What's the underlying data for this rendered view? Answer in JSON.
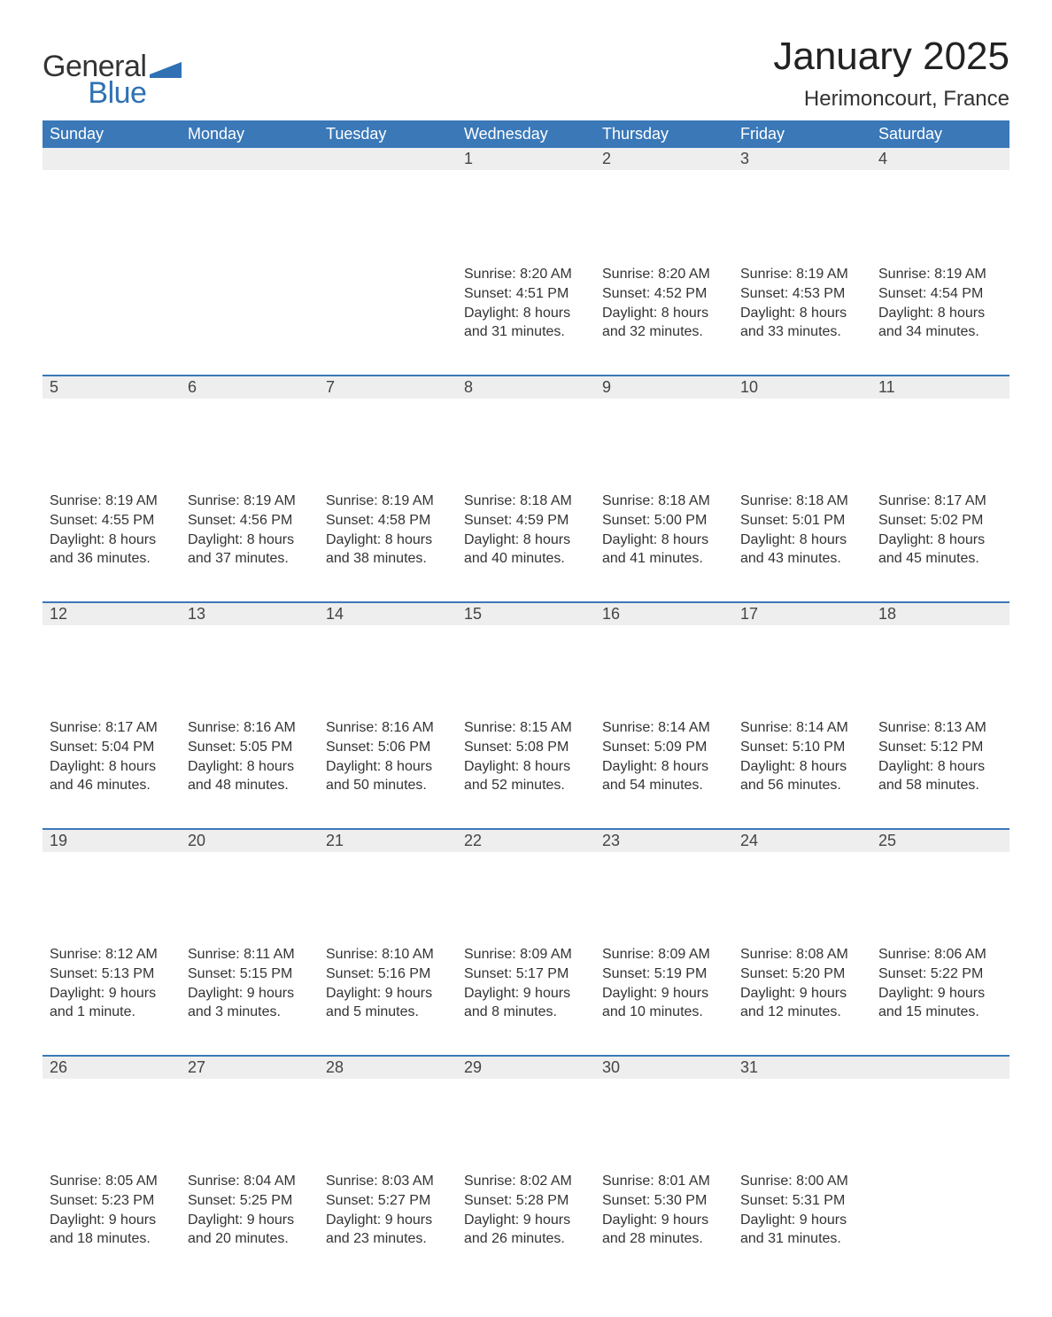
{
  "logo": {
    "word1": "General",
    "word2": "Blue"
  },
  "title": "January 2025",
  "subtitle": "Herimoncourt, France",
  "styling": {
    "header_bg": "#3a78b8",
    "header_fg": "#ffffff",
    "daynum_bg": "#eeeeee",
    "daynum_border_top": "#3a78b8",
    "page_bg": "#ffffff",
    "text_color": "#333333",
    "title_fontsize_pt": 33,
    "subtitle_fontsize_pt": 18,
    "body_fontsize_pt": 12,
    "header_fontsize_pt": 13,
    "font_family": "Arial"
  },
  "calendar": {
    "type": "table",
    "columns": [
      "Sunday",
      "Monday",
      "Tuesday",
      "Wednesday",
      "Thursday",
      "Friday",
      "Saturday"
    ],
    "start_day_index": 3,
    "days": [
      {
        "n": 1,
        "sunrise": "8:20 AM",
        "sunset": "4:51 PM",
        "daylight": "8 hours and 31 minutes."
      },
      {
        "n": 2,
        "sunrise": "8:20 AM",
        "sunset": "4:52 PM",
        "daylight": "8 hours and 32 minutes."
      },
      {
        "n": 3,
        "sunrise": "8:19 AM",
        "sunset": "4:53 PM",
        "daylight": "8 hours and 33 minutes."
      },
      {
        "n": 4,
        "sunrise": "8:19 AM",
        "sunset": "4:54 PM",
        "daylight": "8 hours and 34 minutes."
      },
      {
        "n": 5,
        "sunrise": "8:19 AM",
        "sunset": "4:55 PM",
        "daylight": "8 hours and 36 minutes."
      },
      {
        "n": 6,
        "sunrise": "8:19 AM",
        "sunset": "4:56 PM",
        "daylight": "8 hours and 37 minutes."
      },
      {
        "n": 7,
        "sunrise": "8:19 AM",
        "sunset": "4:58 PM",
        "daylight": "8 hours and 38 minutes."
      },
      {
        "n": 8,
        "sunrise": "8:18 AM",
        "sunset": "4:59 PM",
        "daylight": "8 hours and 40 minutes."
      },
      {
        "n": 9,
        "sunrise": "8:18 AM",
        "sunset": "5:00 PM",
        "daylight": "8 hours and 41 minutes."
      },
      {
        "n": 10,
        "sunrise": "8:18 AM",
        "sunset": "5:01 PM",
        "daylight": "8 hours and 43 minutes."
      },
      {
        "n": 11,
        "sunrise": "8:17 AM",
        "sunset": "5:02 PM",
        "daylight": "8 hours and 45 minutes."
      },
      {
        "n": 12,
        "sunrise": "8:17 AM",
        "sunset": "5:04 PM",
        "daylight": "8 hours and 46 minutes."
      },
      {
        "n": 13,
        "sunrise": "8:16 AM",
        "sunset": "5:05 PM",
        "daylight": "8 hours and 48 minutes."
      },
      {
        "n": 14,
        "sunrise": "8:16 AM",
        "sunset": "5:06 PM",
        "daylight": "8 hours and 50 minutes."
      },
      {
        "n": 15,
        "sunrise": "8:15 AM",
        "sunset": "5:08 PM",
        "daylight": "8 hours and 52 minutes."
      },
      {
        "n": 16,
        "sunrise": "8:14 AM",
        "sunset": "5:09 PM",
        "daylight": "8 hours and 54 minutes."
      },
      {
        "n": 17,
        "sunrise": "8:14 AM",
        "sunset": "5:10 PM",
        "daylight": "8 hours and 56 minutes."
      },
      {
        "n": 18,
        "sunrise": "8:13 AM",
        "sunset": "5:12 PM",
        "daylight": "8 hours and 58 minutes."
      },
      {
        "n": 19,
        "sunrise": "8:12 AM",
        "sunset": "5:13 PM",
        "daylight": "9 hours and 1 minute."
      },
      {
        "n": 20,
        "sunrise": "8:11 AM",
        "sunset": "5:15 PM",
        "daylight": "9 hours and 3 minutes."
      },
      {
        "n": 21,
        "sunrise": "8:10 AM",
        "sunset": "5:16 PM",
        "daylight": "9 hours and 5 minutes."
      },
      {
        "n": 22,
        "sunrise": "8:09 AM",
        "sunset": "5:17 PM",
        "daylight": "9 hours and 8 minutes."
      },
      {
        "n": 23,
        "sunrise": "8:09 AM",
        "sunset": "5:19 PM",
        "daylight": "9 hours and 10 minutes."
      },
      {
        "n": 24,
        "sunrise": "8:08 AM",
        "sunset": "5:20 PM",
        "daylight": "9 hours and 12 minutes."
      },
      {
        "n": 25,
        "sunrise": "8:06 AM",
        "sunset": "5:22 PM",
        "daylight": "9 hours and 15 minutes."
      },
      {
        "n": 26,
        "sunrise": "8:05 AM",
        "sunset": "5:23 PM",
        "daylight": "9 hours and 18 minutes."
      },
      {
        "n": 27,
        "sunrise": "8:04 AM",
        "sunset": "5:25 PM",
        "daylight": "9 hours and 20 minutes."
      },
      {
        "n": 28,
        "sunrise": "8:03 AM",
        "sunset": "5:27 PM",
        "daylight": "9 hours and 23 minutes."
      },
      {
        "n": 29,
        "sunrise": "8:02 AM",
        "sunset": "5:28 PM",
        "daylight": "9 hours and 26 minutes."
      },
      {
        "n": 30,
        "sunrise": "8:01 AM",
        "sunset": "5:30 PM",
        "daylight": "9 hours and 28 minutes."
      },
      {
        "n": 31,
        "sunrise": "8:00 AM",
        "sunset": "5:31 PM",
        "daylight": "9 hours and 31 minutes."
      }
    ],
    "labels": {
      "sunrise_prefix": "Sunrise: ",
      "sunset_prefix": "Sunset: ",
      "daylight_prefix": "Daylight: "
    }
  }
}
